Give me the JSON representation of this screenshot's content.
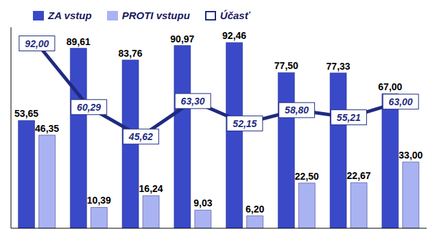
{
  "chart_data": {
    "type": "bar",
    "categories": [
      null,
      null,
      null,
      null,
      null,
      null,
      null,
      null
    ],
    "series": [
      {
        "name": "ZA vstup",
        "type": "bar",
        "color": "#3949c8",
        "values": [
          53.65,
          89.61,
          83.76,
          90.97,
          92.46,
          77.5,
          77.33,
          67.0
        ],
        "value_labels": [
          "53,65",
          "89,61",
          "83,76",
          "90,97",
          "92,46",
          "77,50",
          "77,33",
          "67,00"
        ]
      },
      {
        "name": "PROTI vstupu",
        "type": "bar",
        "color": "#aab3f2",
        "values": [
          46.35,
          10.39,
          16.24,
          9.03,
          6.2,
          22.5,
          22.67,
          33.0
        ],
        "value_labels": [
          "46,35",
          "10,39",
          "16,24",
          "9,03",
          "6,20",
          "22,50",
          "22,67",
          "33,00"
        ]
      },
      {
        "name": "Účasť",
        "type": "line",
        "color": "#1f2a80",
        "marker": "none",
        "values": [
          92.0,
          60.29,
          45.62,
          63.3,
          52.15,
          58.8,
          55.21,
          63.0
        ],
        "value_labels": [
          "92,00",
          "60,29",
          "45,62",
          "63,30",
          "52,15",
          "58,80",
          "55,21",
          "63,00"
        ]
      }
    ],
    "ylim": [
      0,
      100
    ],
    "legend": "top",
    "data_labels": true,
    "tick_labels": false
  }
}
